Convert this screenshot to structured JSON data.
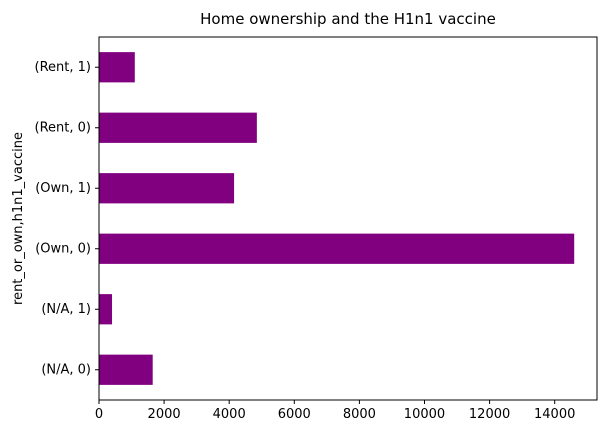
{
  "chart_data": {
    "type": "bar",
    "orientation": "horizontal",
    "title": "Home ownership and the H1n1 vaccine",
    "ylabel": "rent_or_own,h1n1_vaccine",
    "xlabel": "",
    "categories": [
      "(N/A, 0)",
      "(N/A, 1)",
      "(Own, 0)",
      "(Own, 1)",
      "(Rent, 0)",
      "(Rent, 1)"
    ],
    "values": [
      1650,
      400,
      14600,
      4150,
      4850,
      1100
    ],
    "xlim": [
      0,
      15300
    ],
    "xticks": [
      0,
      2000,
      4000,
      6000,
      8000,
      10000,
      12000,
      14000
    ],
    "bar_color": "#800080",
    "grid": false,
    "legend": "none"
  }
}
